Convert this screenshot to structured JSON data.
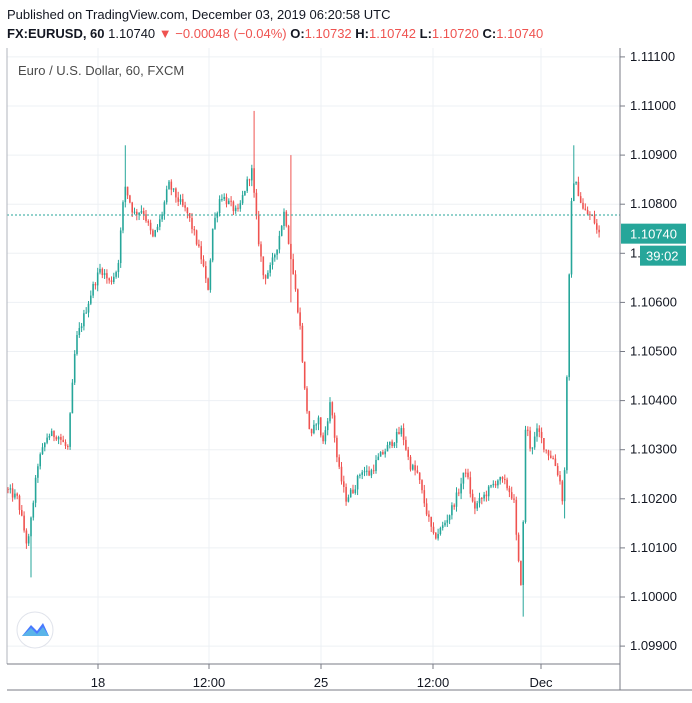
{
  "header": {
    "published": "Published on TradingView.com, December 03, 2019 06:20:58 UTC",
    "symbol": "FX:EURUSD, 60",
    "last": "1.10740",
    "change_arrow": "▼",
    "change": "−0.00048 (−0.04%)",
    "o_label": "O:",
    "o_value": "1.10732",
    "h_label": "H:",
    "h_value": "1.10742",
    "l_label": "L:",
    "l_value": "1.10720",
    "c_label": "C:",
    "c_value": "1.10740"
  },
  "chart_data": {
    "type": "candlestick",
    "title": "Euro / U.S. Dollar, 60, FXCM",
    "ylim": [
      1.0987,
      1.1115
    ],
    "y_ticks": [
      "1.11100",
      "1.11000",
      "1.10900",
      "1.10800",
      "1.10700",
      "1.10600",
      "1.10500",
      "1.10400",
      "1.10300",
      "1.10200",
      "1.10100",
      "1.10000",
      "1.09900"
    ],
    "x_ticks": [
      {
        "label": "18",
        "x": 98
      },
      {
        "label": "12:00",
        "x": 209
      },
      {
        "label": "25",
        "x": 321
      },
      {
        "label": "12:00",
        "x": 433
      },
      {
        "label": "Dec",
        "x": 541
      }
    ],
    "last_price": "1.10740",
    "last_price_value": 1.1074,
    "countdown": "39:02",
    "current_line_value": 1.10778,
    "path_points": [
      [
        8,
        1.1022
      ],
      [
        20,
        1.102
      ],
      [
        30,
        1.101
      ],
      [
        40,
        1.1027
      ],
      [
        50,
        1.1033
      ],
      [
        60,
        1.1033
      ],
      [
        70,
        1.103
      ],
      [
        78,
        1.1052
      ],
      [
        86,
        1.1057
      ],
      [
        95,
        1.1063
      ],
      [
        103,
        1.1067
      ],
      [
        112,
        1.1064
      ],
      [
        120,
        1.1067
      ],
      [
        127,
        1.1084
      ],
      [
        136,
        1.1078
      ],
      [
        145,
        1.1079
      ],
      [
        155,
        1.1073
      ],
      [
        163,
        1.1077
      ],
      [
        171,
        1.1084
      ],
      [
        180,
        1.1081
      ],
      [
        190,
        1.1078
      ],
      [
        198,
        1.1073
      ],
      [
        205,
        1.1068
      ],
      [
        210,
        1.1062
      ],
      [
        215,
        1.1075
      ],
      [
        223,
        1.1082
      ],
      [
        232,
        1.108
      ],
      [
        240,
        1.1078
      ],
      [
        247,
        1.1083
      ],
      [
        254,
        1.1087
      ],
      [
        260,
        1.1074
      ],
      [
        266,
        1.1065
      ],
      [
        273,
        1.1067
      ],
      [
        280,
        1.1072
      ],
      [
        287,
        1.1079
      ],
      [
        290,
        1.1074
      ],
      [
        296,
        1.1065
      ],
      [
        302,
        1.1056
      ],
      [
        307,
        1.1042
      ],
      [
        313,
        1.1032
      ],
      [
        320,
        1.1037
      ],
      [
        325,
        1.1031
      ],
      [
        333,
        1.104
      ],
      [
        340,
        1.1027
      ],
      [
        348,
        1.102
      ],
      [
        356,
        1.1022
      ],
      [
        364,
        1.1026
      ],
      [
        372,
        1.1025
      ],
      [
        380,
        1.1028
      ],
      [
        388,
        1.103
      ],
      [
        396,
        1.1032
      ],
      [
        404,
        1.1034
      ],
      [
        412,
        1.1027
      ],
      [
        420,
        1.1025
      ],
      [
        428,
        1.1018
      ],
      [
        436,
        1.1012
      ],
      [
        444,
        1.1014
      ],
      [
        452,
        1.1017
      ],
      [
        460,
        1.1021
      ],
      [
        468,
        1.1026
      ],
      [
        476,
        1.1018
      ],
      [
        484,
        1.102
      ],
      [
        492,
        1.1022
      ],
      [
        500,
        1.1024
      ],
      [
        508,
        1.1023
      ],
      [
        516,
        1.102
      ],
      [
        520,
        1.1008
      ],
      [
        524,
        1.1002
      ],
      [
        528,
        1.1036
      ],
      [
        533,
        1.103
      ],
      [
        540,
        1.1034
      ],
      [
        548,
        1.103
      ],
      [
        556,
        1.1028
      ],
      [
        562,
        1.1024
      ],
      [
        566,
        1.1018
      ],
      [
        570,
        1.1052
      ],
      [
        573,
        1.1078
      ],
      [
        576,
        1.1085
      ],
      [
        580,
        1.1083
      ],
      [
        585,
        1.1079
      ],
      [
        590,
        1.1078
      ],
      [
        596,
        1.1077
      ],
      [
        600,
        1.1074
      ]
    ]
  }
}
